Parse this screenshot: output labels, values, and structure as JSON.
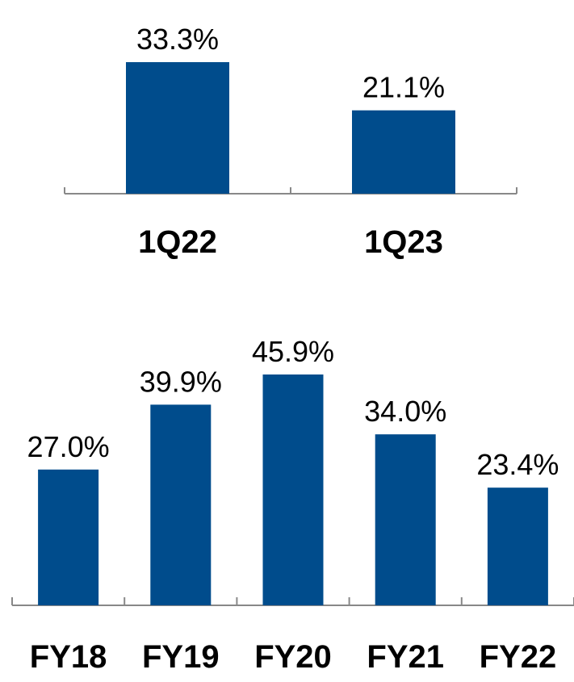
{
  "chart_data": [
    {
      "type": "bar",
      "categories": [
        "1Q22",
        "1Q23"
      ],
      "values": [
        33.3,
        21.1
      ],
      "data_labels": [
        "33.3%",
        "21.1%"
      ],
      "ylim": [
        0,
        33.3
      ],
      "grid": false,
      "legend": "none",
      "colors": {
        "bar": "#004C8C"
      }
    },
    {
      "type": "bar",
      "categories": [
        "FY18",
        "FY19",
        "FY20",
        "FY21",
        "FY22"
      ],
      "values": [
        27.0,
        39.9,
        45.9,
        34.0,
        23.4
      ],
      "data_labels": [
        "27.0%",
        "39.9%",
        "45.9%",
        "34.0%",
        "23.4%"
      ],
      "ylim": [
        0,
        45.9
      ],
      "grid": false,
      "legend": "none",
      "colors": {
        "bar": "#004C8C"
      }
    }
  ]
}
